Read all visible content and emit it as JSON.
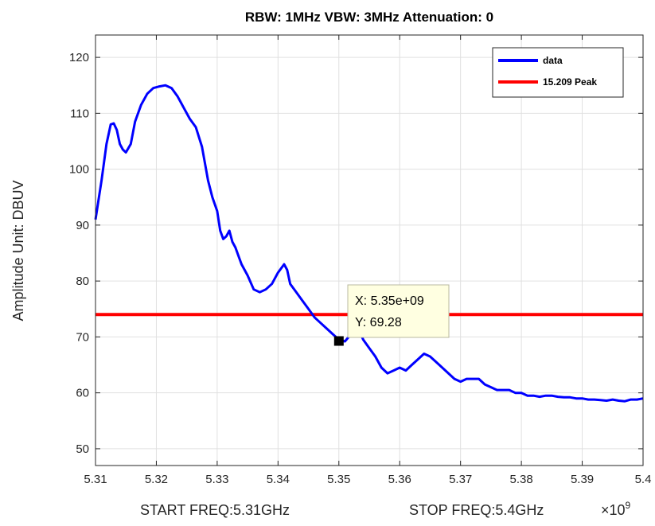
{
  "chart_data": {
    "type": "line",
    "title": "RBW: 1MHz   VBW: 3MHz  Attenuation: 0",
    "xlabel_left": "START FREQ:5.31GHz",
    "xlabel_right": "STOP FREQ:5.4GHz",
    "x_exponent_base": "×10",
    "x_exponent_power": "9",
    "ylabel": "Amplitude Unit: DBUV",
    "xlim": [
      5.31,
      5.4
    ],
    "ylim": [
      47,
      124
    ],
    "x_ticks": [
      5.31,
      5.32,
      5.33,
      5.34,
      5.35,
      5.36,
      5.37,
      5.38,
      5.39,
      5.4
    ],
    "x_tick_labels": [
      "5.31",
      "5.32",
      "5.33",
      "5.34",
      "5.35",
      "5.36",
      "5.37",
      "5.38",
      "5.39",
      "5.4"
    ],
    "y_ticks": [
      50,
      60,
      70,
      80,
      90,
      100,
      110,
      120
    ],
    "y_tick_labels": [
      "50",
      "60",
      "70",
      "80",
      "90",
      "100",
      "110",
      "120"
    ],
    "grid": true,
    "legend_position": "top-right",
    "series": [
      {
        "name": "data",
        "color": "#0000ff",
        "x": [
          5.31,
          5.311,
          5.3118,
          5.3125,
          5.313,
          5.3135,
          5.314,
          5.3145,
          5.315,
          5.3158,
          5.3165,
          5.3175,
          5.3185,
          5.3195,
          5.3205,
          5.3215,
          5.3225,
          5.3235,
          5.3245,
          5.3255,
          5.3265,
          5.3275,
          5.3285,
          5.3292,
          5.33,
          5.3305,
          5.331,
          5.3315,
          5.332,
          5.3325,
          5.333,
          5.3335,
          5.334,
          5.335,
          5.336,
          5.337,
          5.338,
          5.339,
          5.34,
          5.341,
          5.3415,
          5.342,
          5.343,
          5.344,
          5.345,
          5.346,
          5.347,
          5.348,
          5.349,
          5.35,
          5.351,
          5.352,
          5.353,
          5.354,
          5.355,
          5.356,
          5.357,
          5.358,
          5.359,
          5.36,
          5.361,
          5.362,
          5.363,
          5.364,
          5.365,
          5.366,
          5.367,
          5.368,
          5.369,
          5.37,
          5.371,
          5.372,
          5.373,
          5.374,
          5.375,
          5.376,
          5.377,
          5.378,
          5.379,
          5.38,
          5.381,
          5.382,
          5.383,
          5.384,
          5.385,
          5.386,
          5.387,
          5.388,
          5.389,
          5.39,
          5.391,
          5.392,
          5.393,
          5.394,
          5.395,
          5.396,
          5.397,
          5.398,
          5.399,
          5.4
        ],
        "values": [
          91.0,
          98.0,
          104.5,
          108.0,
          108.2,
          107.0,
          104.5,
          103.5,
          103.0,
          104.5,
          108.5,
          111.5,
          113.5,
          114.5,
          114.8,
          115.0,
          114.5,
          113.0,
          111.0,
          109.0,
          107.5,
          104.0,
          98.0,
          95.0,
          92.5,
          89.0,
          87.5,
          88.0,
          89.0,
          87.0,
          86.0,
          84.5,
          83.0,
          81.0,
          78.5,
          78.0,
          78.5,
          79.5,
          81.5,
          83.0,
          82.0,
          79.5,
          78.0,
          76.5,
          75.0,
          73.5,
          72.5,
          71.5,
          70.5,
          69.5,
          69.2,
          70.5,
          72.0,
          69.5,
          68.0,
          66.5,
          64.5,
          63.5,
          64.0,
          64.5,
          64.0,
          65.0,
          66.0,
          67.0,
          66.5,
          65.5,
          64.5,
          63.5,
          62.5,
          62.0,
          62.5,
          62.5,
          62.5,
          61.5,
          61.0,
          60.5,
          60.5,
          60.5,
          60.0,
          60.0,
          59.5,
          59.5,
          59.3,
          59.5,
          59.5,
          59.3,
          59.2,
          59.2,
          59.0,
          59.0,
          58.8,
          58.8,
          58.7,
          58.6,
          58.8,
          58.6,
          58.5,
          58.8,
          58.8,
          59.0
        ]
      },
      {
        "name": "15.209 Peak",
        "color": "#ff0000",
        "x": [
          5.31,
          5.4
        ],
        "values": [
          74.0,
          74.0
        ]
      }
    ],
    "datatip": {
      "x": 5.35,
      "y": 69.28,
      "x_text": "X: 5.35e+09",
      "y_text": "Y: 69.28"
    }
  }
}
